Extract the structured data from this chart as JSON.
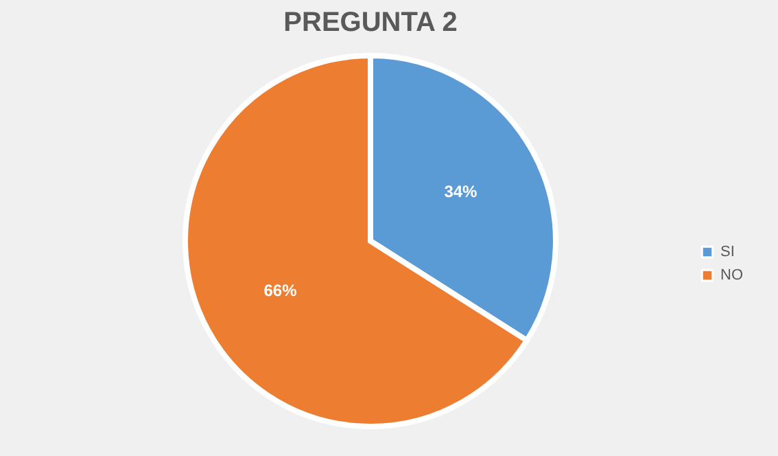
{
  "chart_data": {
    "type": "pie",
    "title": "PREGUNTA 2",
    "categories": [
      "SI",
      "NO"
    ],
    "values": [
      34,
      66
    ],
    "colors": [
      "#5b9bd5",
      "#ed7d31"
    ],
    "value_labels": [
      "34%",
      "66%"
    ],
    "legend": "right"
  }
}
